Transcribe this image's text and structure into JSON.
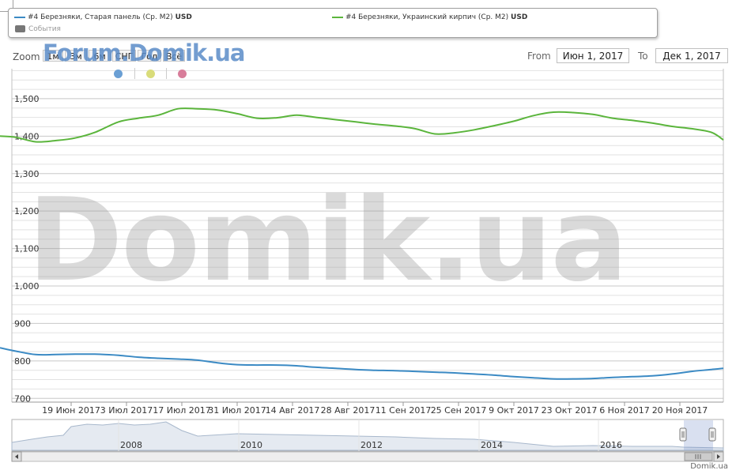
{
  "legend": {
    "series1_label": "#4 Березняки, Старая панель (Ср. М2)",
    "series1_unit": "USD",
    "series2_label": "#4 Березняки, Украинский кирпич (Ср. М2)",
    "series2_unit": "USD",
    "events_label": "События"
  },
  "zoom": {
    "label": "Zoom",
    "buttons": [
      "1м",
      "3м",
      "6м",
      "СНГ",
      "Год",
      "Всё"
    ]
  },
  "range": {
    "from_label": "From",
    "from_value": "Июн 1, 2017",
    "to_label": "To",
    "to_value": "Дек 1, 2017"
  },
  "markers": {
    "colors": [
      "#6a9fd4",
      "#d9dc7a",
      "#d87d9a"
    ]
  },
  "watermark_top": "Forum.Domik.ua",
  "watermark": "Domik.ua",
  "credit": "Domik.ua",
  "navigator": {
    "year_labels": [
      "2008",
      "2010",
      "2012",
      "2014",
      "2016"
    ]
  },
  "colors": {
    "series1": "#3b8ac4",
    "series2": "#5bb53c",
    "grid": "#d0d0d0"
  },
  "chart_data": {
    "type": "line",
    "title": "",
    "xlabel": "",
    "ylabel": "",
    "ylim": [
      690,
      1580
    ],
    "yticks": [
      700,
      800,
      900,
      1000,
      1100,
      1200,
      1300,
      1400,
      1500
    ],
    "ytick_labels": [
      "700",
      "800",
      "900",
      "1,000",
      "1,100",
      "1,200",
      "1,300",
      "1,400",
      "1,500"
    ],
    "xlim": [
      "2017-06-01",
      "2017-12-01"
    ],
    "xticks": [
      {
        "date": "2017-06-19",
        "label": "19 Июн 2017"
      },
      {
        "date": "2017-07-03",
        "label": "3 Июл 2017"
      },
      {
        "date": "2017-07-17",
        "label": "17 Июл 2017"
      },
      {
        "date": "2017-07-31",
        "label": "31 Июл 2017"
      },
      {
        "date": "2017-08-14",
        "label": "14 Авг 2017"
      },
      {
        "date": "2017-08-28",
        "label": "28 Авг 2017"
      },
      {
        "date": "2017-09-11",
        "label": "11 Сен 2017"
      },
      {
        "date": "2017-09-25",
        "label": "25 Сен 2017"
      },
      {
        "date": "2017-10-09",
        "label": "9 Окт 2017"
      },
      {
        "date": "2017-10-23",
        "label": "23 Окт 2017"
      },
      {
        "date": "2017-11-06",
        "label": "6 Ноя 2017"
      },
      {
        "date": "2017-11-20",
        "label": "20 Ноя 2017"
      }
    ],
    "series": [
      {
        "name": "#4 Березняки, Старая панель (Ср. М2)",
        "x": [
          "2017-06-01",
          "2017-06-05",
          "2017-06-10",
          "2017-06-15",
          "2017-06-20",
          "2017-06-25",
          "2017-07-01",
          "2017-07-06",
          "2017-07-11",
          "2017-07-16",
          "2017-07-21",
          "2017-07-26",
          "2017-07-31",
          "2017-08-05",
          "2017-08-10",
          "2017-08-15",
          "2017-08-20",
          "2017-08-25",
          "2017-08-30",
          "2017-09-04",
          "2017-09-09",
          "2017-09-14",
          "2017-09-19",
          "2017-09-24",
          "2017-09-29",
          "2017-10-04",
          "2017-10-09",
          "2017-10-14",
          "2017-10-19",
          "2017-10-24",
          "2017-10-29",
          "2017-11-03",
          "2017-11-08",
          "2017-11-13",
          "2017-11-18",
          "2017-11-23",
          "2017-11-28",
          "2017-12-01"
        ],
        "y": [
          835,
          826,
          817,
          817,
          818,
          818,
          815,
          810,
          807,
          805,
          802,
          795,
          790,
          789,
          789,
          787,
          783,
          780,
          777,
          775,
          774,
          772,
          770,
          768,
          765,
          762,
          758,
          755,
          752,
          752,
          753,
          756,
          758,
          760,
          765,
          772,
          777,
          780
        ]
      },
      {
        "name": "#4 Березняки, Украинский кирпич (Ср. М2)",
        "x": [
          "2017-06-01",
          "2017-06-05",
          "2017-06-10",
          "2017-06-15",
          "2017-06-20",
          "2017-06-25",
          "2017-07-01",
          "2017-07-06",
          "2017-07-11",
          "2017-07-16",
          "2017-07-21",
          "2017-07-26",
          "2017-07-31",
          "2017-08-05",
          "2017-08-10",
          "2017-08-15",
          "2017-08-20",
          "2017-08-25",
          "2017-08-30",
          "2017-09-04",
          "2017-09-09",
          "2017-09-14",
          "2017-09-19",
          "2017-09-24",
          "2017-09-29",
          "2017-10-04",
          "2017-10-09",
          "2017-10-14",
          "2017-10-19",
          "2017-10-24",
          "2017-10-29",
          "2017-11-03",
          "2017-11-08",
          "2017-11-13",
          "2017-11-18",
          "2017-11-23",
          "2017-11-28",
          "2017-12-01"
        ],
        "y": [
          1400,
          1397,
          1385,
          1388,
          1395,
          1410,
          1438,
          1448,
          1456,
          1473,
          1473,
          1470,
          1460,
          1448,
          1449,
          1456,
          1450,
          1444,
          1438,
          1432,
          1427,
          1420,
          1406,
          1409,
          1417,
          1428,
          1440,
          1455,
          1464,
          1463,
          1458,
          1448,
          1442,
          1435,
          1426,
          1420,
          1410,
          1390
        ]
      }
    ]
  }
}
